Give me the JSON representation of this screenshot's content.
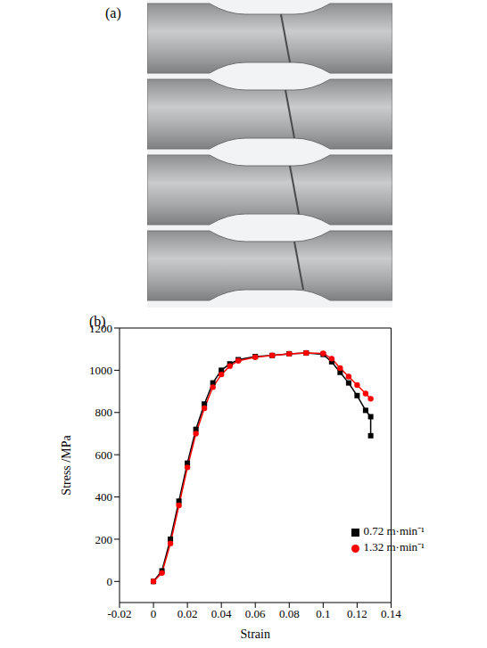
{
  "panel_a": {
    "label": "(a)"
  },
  "chart_data": {
    "type": "line",
    "panel_label": "(b)",
    "x_label": "Strain",
    "y_label": "Stress /MPa",
    "xlim": [
      -0.02,
      0.14
    ],
    "xticks": [
      -0.02,
      0,
      0.02,
      0.04,
      0.06,
      0.08,
      0.1,
      0.12,
      0.14
    ],
    "ylim": [
      -100,
      1200
    ],
    "yticks": [
      0,
      200,
      400,
      600,
      800,
      1000,
      1200
    ],
    "legend": "lower right",
    "series": [
      {
        "name": "0.72 m·min⁻¹",
        "color": "#000000",
        "marker": "square",
        "x": [
          0,
          0.005,
          0.01,
          0.015,
          0.02,
          0.025,
          0.03,
          0.035,
          0.04,
          0.045,
          0.05,
          0.06,
          0.07,
          0.08,
          0.09,
          0.1,
          0.105,
          0.11,
          0.115,
          0.12,
          0.125,
          0.128,
          0.128
        ],
        "values": [
          0,
          50,
          200,
          380,
          560,
          720,
          840,
          940,
          1000,
          1030,
          1050,
          1065,
          1070,
          1078,
          1082,
          1075,
          1040,
          990,
          940,
          880,
          810,
          780,
          690
        ]
      },
      {
        "name": "1.32 m·min⁻¹",
        "color": "#ff0000",
        "marker": "circle",
        "x": [
          0,
          0.005,
          0.01,
          0.015,
          0.02,
          0.025,
          0.03,
          0.035,
          0.04,
          0.045,
          0.05,
          0.06,
          0.07,
          0.08,
          0.09,
          0.1,
          0.105,
          0.11,
          0.115,
          0.12,
          0.125,
          0.128
        ],
        "values": [
          0,
          40,
          180,
          360,
          540,
          700,
          820,
          920,
          980,
          1020,
          1045,
          1062,
          1070,
          1078,
          1082,
          1080,
          1055,
          1010,
          970,
          930,
          890,
          865
        ]
      }
    ]
  }
}
